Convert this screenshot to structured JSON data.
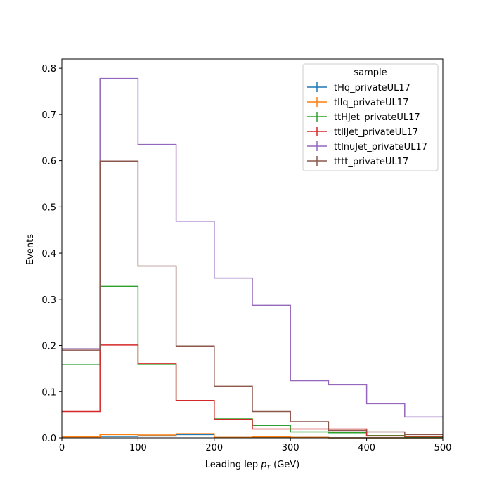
{
  "chart_data": {
    "type": "line",
    "style": "step-histogram",
    "xlabel_main": "Leading lep ",
    "xlabel_math": "p",
    "xlabel_sub": "T",
    "xlabel_unit": " (GeV)",
    "ylabel": "Events",
    "xlim": [
      0,
      500
    ],
    "ylim": [
      0,
      0.82
    ],
    "grid": false,
    "bin_edges": [
      0,
      50,
      100,
      150,
      200,
      250,
      300,
      350,
      400,
      450,
      500
    ],
    "x_ticks": [
      "0",
      "100",
      "200",
      "300",
      "400",
      "500"
    ],
    "y_ticks": [
      "0.0",
      "0.1",
      "0.2",
      "0.3",
      "0.4",
      "0.5",
      "0.6",
      "0.7",
      "0.8"
    ],
    "legend_title": "sample",
    "legend_position": "top-right",
    "series": [
      {
        "name": "tHq_privateUL17",
        "color": "#1f77b4",
        "values": [
          0.003,
          0.003,
          0.004,
          0.007,
          0.001,
          0.001,
          0.001,
          0.0,
          0.0,
          0.0
        ]
      },
      {
        "name": "tllq_privateUL17",
        "color": "#ff7f0e",
        "values": [
          0.002,
          0.007,
          0.006,
          0.009,
          0.001,
          0.002,
          0.001,
          0.0,
          0.0,
          0.0
        ]
      },
      {
        "name": "ttHJet_privateUL17",
        "color": "#2ca02c",
        "values": [
          0.158,
          0.328,
          0.158,
          0.081,
          0.041,
          0.027,
          0.013,
          0.011,
          0.005,
          0.002
        ]
      },
      {
        "name": "ttllJet_privateUL17",
        "color": "#d62728",
        "values": [
          0.057,
          0.201,
          0.161,
          0.081,
          0.04,
          0.019,
          0.019,
          0.019,
          0.004,
          0.003
        ]
      },
      {
        "name": "ttlnuJet_privateUL17",
        "color": "#9467bd",
        "values": [
          0.193,
          0.778,
          0.635,
          0.469,
          0.346,
          0.287,
          0.124,
          0.115,
          0.074,
          0.045
        ]
      },
      {
        "name": "tttt_privateUL17",
        "color": "#8c564b",
        "values": [
          0.19,
          0.599,
          0.372,
          0.199,
          0.112,
          0.057,
          0.035,
          0.016,
          0.013,
          0.007
        ]
      }
    ]
  }
}
